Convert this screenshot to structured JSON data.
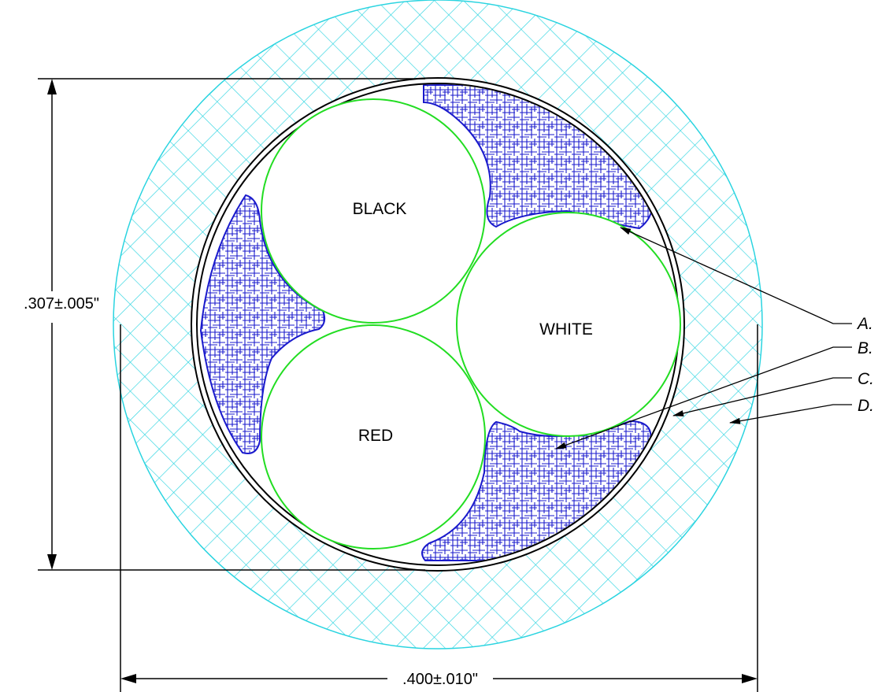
{
  "dimensions": {
    "height_label": ".307±.005\"",
    "width_label": ".400±.010\""
  },
  "conductors": [
    {
      "id": "black",
      "label": "BLACK"
    },
    {
      "id": "white",
      "label": "WHITE"
    },
    {
      "id": "red",
      "label": "RED"
    }
  ],
  "callouts": [
    {
      "id": "a",
      "label": "A."
    },
    {
      "id": "b",
      "label": "B."
    },
    {
      "id": "c",
      "label": "C."
    },
    {
      "id": "d",
      "label": "D."
    }
  ],
  "colors": {
    "outer_jacket_hatch": "#2ad4e0",
    "filler_hatch": "#1a1acc",
    "conductor_outline": "#22dd22",
    "line": "#000000"
  }
}
